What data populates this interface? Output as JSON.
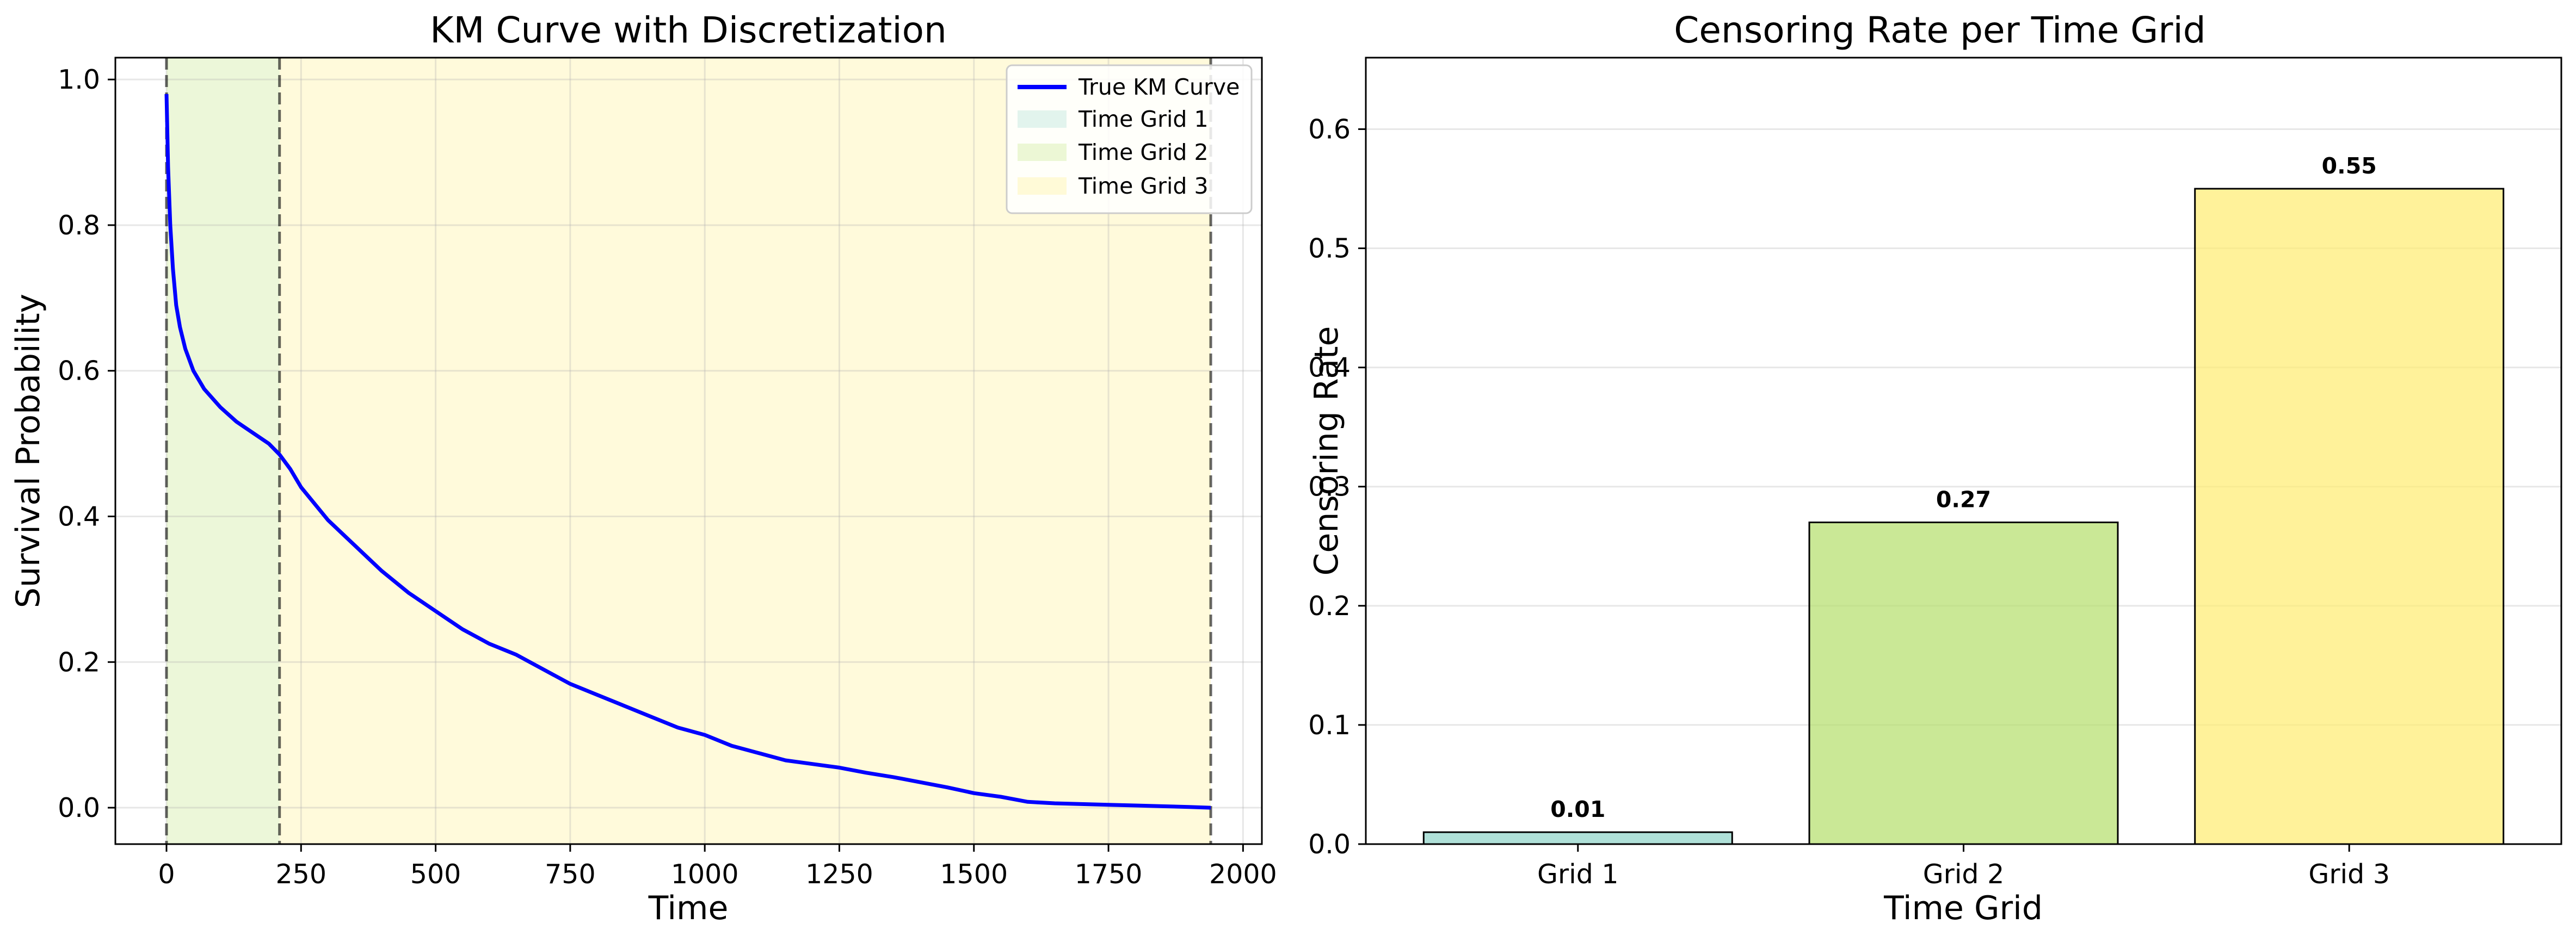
{
  "chart_data": [
    {
      "type": "line",
      "title": "KM Curve with Discretization",
      "xlabel": "Time",
      "ylabel": "Survival Probability",
      "xlim": [
        -95,
        2035
      ],
      "ylim": [
        -0.05,
        1.03
      ],
      "xticks": [
        0,
        250,
        500,
        750,
        1000,
        1250,
        1500,
        1750,
        2000
      ],
      "yticks": [
        0.0,
        0.2,
        0.4,
        0.6,
        0.8,
        1.0
      ],
      "grid": true,
      "legend": "top-right",
      "grid_boundaries": [
        0,
        210,
        1940
      ],
      "regions": [
        {
          "name": "Time Grid 1",
          "from": 0,
          "to": 0,
          "color": "#8dd3c7"
        },
        {
          "name": "Time Grid 2",
          "from": 0,
          "to": 210,
          "color": "#b3de69"
        },
        {
          "name": "Time Grid 3",
          "from": 210,
          "to": 1940,
          "color": "#ffed6f"
        }
      ],
      "series": [
        {
          "name": "True KM Curve",
          "color": "#0000ff",
          "x": [
            0,
            3,
            7,
            12,
            18,
            25,
            35,
            50,
            70,
            100,
            130,
            160,
            190,
            210,
            230,
            250,
            300,
            350,
            400,
            450,
            500,
            550,
            600,
            650,
            700,
            750,
            800,
            850,
            900,
            950,
            1000,
            1050,
            1100,
            1150,
            1200,
            1250,
            1300,
            1350,
            1400,
            1450,
            1500,
            1550,
            1600,
            1650,
            1700,
            1750,
            1800,
            1850,
            1900,
            1940
          ],
          "y": [
            0.98,
            0.88,
            0.8,
            0.74,
            0.69,
            0.66,
            0.63,
            0.6,
            0.575,
            0.55,
            0.53,
            0.515,
            0.5,
            0.485,
            0.465,
            0.44,
            0.395,
            0.36,
            0.325,
            0.295,
            0.27,
            0.245,
            0.225,
            0.21,
            0.19,
            0.17,
            0.155,
            0.14,
            0.125,
            0.11,
            0.1,
            0.085,
            0.075,
            0.065,
            0.06,
            0.055,
            0.048,
            0.042,
            0.035,
            0.028,
            0.02,
            0.015,
            0.008,
            0.006,
            0.005,
            0.004,
            0.003,
            0.002,
            0.001,
            0.0
          ]
        }
      ]
    },
    {
      "type": "bar",
      "title": "Censoring Rate per Time Grid",
      "xlabel": "Time Grid",
      "ylabel": "Censoring Rate",
      "categories": [
        "Grid 1",
        "Grid 2",
        "Grid 3"
      ],
      "values": [
        0.01,
        0.27,
        0.55
      ],
      "value_labels": [
        "0.01",
        "0.27",
        "0.55"
      ],
      "colors": [
        "#8dd3c7",
        "#b3de69",
        "#ffed6f"
      ],
      "ylim": [
        0,
        0.66
      ],
      "yticks": [
        0.0,
        0.1,
        0.2,
        0.3,
        0.4,
        0.5,
        0.6
      ],
      "grid": true
    }
  ]
}
